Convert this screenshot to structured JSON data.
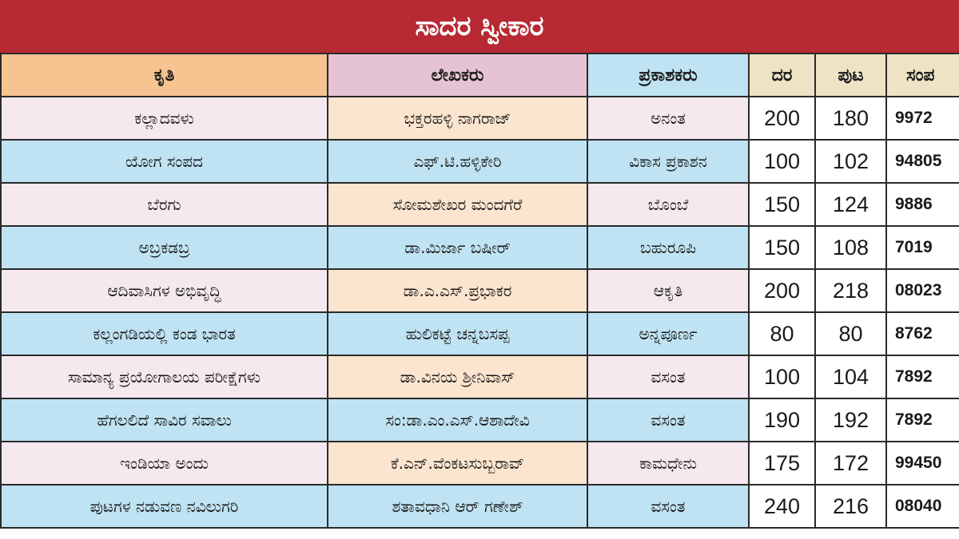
{
  "title": "ಸಾದರ ಸ್ವೀಕಾರ",
  "headers": {
    "title": "ಕೃತಿ",
    "author": "ಲೇಖಕರು",
    "publisher": "ಪ್ರಕಾಶಕರು",
    "price": "ದರ",
    "pages": "ಪುಟ",
    "contact": "ಸಂಪ"
  },
  "rows": [
    {
      "title": "ಕಲ್ಲಾದವಳು",
      "author": "ಭಕ್ತರಹಳ್ಳಿ ನಾಗರಾಜ್",
      "publisher": "ಅನಂತ",
      "price": "200",
      "pages": "180",
      "contact": "9972"
    },
    {
      "title": "ಯೋಗ ಸಂಪದ",
      "author": "ಎಫ್.ಟಿ.ಹಳ್ಳಿಕೇರಿ",
      "publisher": "ವಿಕಾಸ ಪ್ರಕಾಶನ",
      "price": "100",
      "pages": "102",
      "contact": "94805"
    },
    {
      "title": "ಬೆರಗು",
      "author": "ಸೋಮಶೇಖರ ಮಂದಗೆರೆ",
      "publisher": "ಬೊಂಬೆ",
      "price": "150",
      "pages": "124",
      "contact": "9886"
    },
    {
      "title": "ಅಬ್ರಕಡಬ್ರ",
      "author": "ಡಾ.ಮಿರ್ಜಾ ಬಷೀರ್",
      "publisher": "ಬಹುರೂಪಿ",
      "price": "150",
      "pages": "108",
      "contact": "7019"
    },
    {
      "title": "ಆದಿವಾಸಿಗಳ ಅಭಿವೃದ್ಧಿ",
      "author": "ಡಾ.ಎ.ಎಸ್.ಪ್ರಭಾಕರ",
      "publisher": "ಆಕೃತಿ",
      "price": "200",
      "pages": "218",
      "contact": "08023"
    },
    {
      "title": "ಕಲ್ಲಂಗಡಿಯಲ್ಲಿ ಕಂಡ ಭಾರತ",
      "author": "ಹುಲಿಕಟ್ಟೆ ಚನ್ನಬಸಪ್ಪ",
      "publisher": "ಅನ್ನಪೂರ್ಣ",
      "price": "80",
      "pages": "80",
      "contact": "8762"
    },
    {
      "title": "ಸಾಮಾನ್ಯ ಪ್ರಯೋಗಾಲಯ ಪರೀಕ್ಷೆಗಳು",
      "author": "ಡಾ.ವಿನಯ ಶ್ರೀನಿವಾಸ್",
      "publisher": "ವಸಂತ",
      "price": "100",
      "pages": "104",
      "contact": "7892"
    },
    {
      "title": "ಹೆಗಲಲಿದೆ ಸಾವಿರ ಸವಾಲು",
      "author": "ಸಂ:ಡಾ.ಎಂ.ಎಸ್.ಆಶಾದೇವಿ",
      "publisher": "ವಸಂತ",
      "price": "190",
      "pages": "192",
      "contact": "7892"
    },
    {
      "title": "ಇಂಡಿಯಾ ಅಂದು",
      "author": "ಕೆ.ಎನ್.ವೆಂಕಟಸುಬ್ಬರಾವ್",
      "publisher": "ಕಾಮಧೇನು",
      "price": "175",
      "pages": "172",
      "contact": "99450"
    },
    {
      "title": "ಪುಟಗಳ ನಡುವಣ ನವಿಲುಗರಿ",
      "author": "ಶತಾವಧಾನಿ ಆರ್ ಗಣೇಶ್",
      "publisher": "ವಸಂತ",
      "price": "240",
      "pages": "216",
      "contact": "08040"
    }
  ]
}
